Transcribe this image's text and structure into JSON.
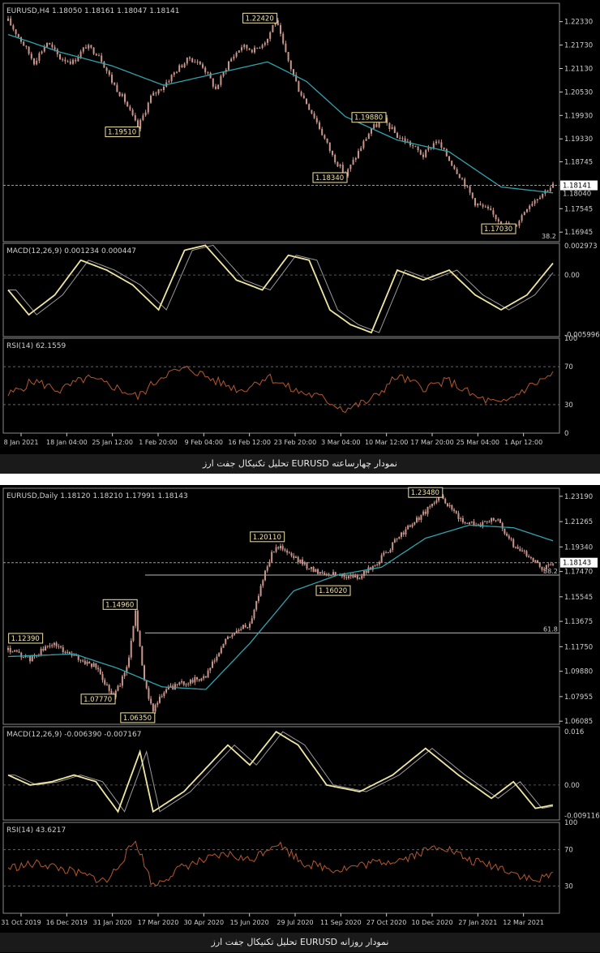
{
  "colors": {
    "candle": "#c9958a",
    "ma": "#2fa3ad",
    "macd": "#f0e6a0",
    "signal": "#9a9a9a",
    "rsi": "#b5572e",
    "label_bg": "#f3e3a3",
    "axis": "#cfcfcf",
    "level": "#b8b8b8"
  },
  "chart_data": [
    {
      "type": "candlestick",
      "title": "EURUSD,H4  1.18050 1.18161 1.18047 1.18141",
      "caption": "تحلیل تکنیکال جفت ارز EURUSD نمودار چهارساعته",
      "x_ticks": [
        "8 Jan 2021",
        "18 Jan 04:00",
        "25 Jan 12:00",
        "1 Feb 20:00",
        "9 Feb 04:00",
        "16 Feb 12:00",
        "23 Feb 20:00",
        "3 Mar 04:00",
        "10 Mar 12:00",
        "17 Mar 20:00",
        "25 Mar 04:00",
        "1 Apr 12:00"
      ],
      "price_ticks": [
        "1.22330",
        "1.21730",
        "1.21130",
        "1.20530",
        "1.19930",
        "1.19330",
        "1.18745",
        "1.17545",
        "1.16945"
      ],
      "ylim": [
        1.167,
        1.228
      ],
      "price_anchors": [
        [
          0,
          1.2235
        ],
        [
          5,
          1.2185
        ],
        [
          10,
          1.213
        ],
        [
          15,
          1.218
        ],
        [
          20,
          1.214
        ],
        [
          25,
          1.213
        ],
        [
          30,
          1.217
        ],
        [
          35,
          1.215
        ],
        [
          40,
          1.208
        ],
        [
          45,
          1.203
        ],
        [
          50,
          1.196
        ],
        [
          55,
          1.204
        ],
        [
          60,
          1.207
        ],
        [
          65,
          1.211
        ],
        [
          70,
          1.214
        ],
        [
          75,
          1.212
        ],
        [
          80,
          1.206
        ],
        [
          85,
          1.213
        ],
        [
          90,
          1.217
        ],
        [
          95,
          1.216
        ],
        [
          100,
          1.219
        ],
        [
          103,
          1.224
        ],
        [
          107,
          1.215
        ],
        [
          112,
          1.206
        ],
        [
          118,
          1.199
        ],
        [
          125,
          1.189
        ],
        [
          130,
          1.184
        ],
        [
          135,
          1.19
        ],
        [
          140,
          1.196
        ],
        [
          145,
          1.198
        ],
        [
          150,
          1.194
        ],
        [
          155,
          1.192
        ],
        [
          160,
          1.189
        ],
        [
          165,
          1.193
        ],
        [
          170,
          1.188
        ],
        [
          175,
          1.183
        ],
        [
          180,
          1.177
        ],
        [
          185,
          1.175
        ],
        [
          190,
          1.172
        ],
        [
          195,
          1.1705
        ],
        [
          200,
          1.176
        ],
        [
          205,
          1.179
        ],
        [
          210,
          1.1815
        ]
      ],
      "ma_anchors": [
        [
          0,
          1.22
        ],
        [
          20,
          1.2155
        ],
        [
          40,
          1.212
        ],
        [
          60,
          1.207
        ],
        [
          80,
          1.21
        ],
        [
          100,
          1.213
        ],
        [
          115,
          1.208
        ],
        [
          130,
          1.199
        ],
        [
          150,
          1.193
        ],
        [
          170,
          1.19
        ],
        [
          190,
          1.181
        ],
        [
          210,
          1.1795
        ]
      ],
      "annotations": [
        {
          "text": "1.22420",
          "x": 103,
          "y": 1.2242
        },
        {
          "text": "1.19510",
          "x": 50,
          "y": 1.1951
        },
        {
          "text": "1.18340",
          "x": 130,
          "y": 1.1834
        },
        {
          "text": "1.19880",
          "x": 145,
          "y": 1.1988
        },
        {
          "text": "1.17030",
          "x": 195,
          "y": 1.1703
        }
      ],
      "current_price": "1.18141",
      "line_price": "1.18040",
      "fib_label": "38.2",
      "macd": {
        "title": "MACD(12,26,9) 0.001234 0.000447",
        "ticks": [
          "0.002973",
          "0.00",
          "-0.005996"
        ],
        "ylim": [
          -0.0062,
          0.0032
        ],
        "anchors": [
          [
            0,
            -0.0015
          ],
          [
            8,
            -0.004
          ],
          [
            18,
            -0.002
          ],
          [
            28,
            0.0015
          ],
          [
            38,
            0.0005
          ],
          [
            48,
            -0.001
          ],
          [
            58,
            -0.0035
          ],
          [
            68,
            0.0025
          ],
          [
            76,
            0.003
          ],
          [
            88,
            -0.0005
          ],
          [
            98,
            -0.0015
          ],
          [
            108,
            0.002
          ],
          [
            116,
            0.0015
          ],
          [
            124,
            -0.0035
          ],
          [
            132,
            -0.005
          ],
          [
            140,
            -0.0058
          ],
          [
            150,
            0.0005
          ],
          [
            160,
            -0.0005
          ],
          [
            170,
            0.0005
          ],
          [
            180,
            -0.002
          ],
          [
            190,
            -0.0035
          ],
          [
            200,
            -0.002
          ],
          [
            210,
            0.0012
          ]
        ]
      },
      "rsi": {
        "title": "RSI(14) 62.1559",
        "ticks": [
          "100",
          "70",
          "30",
          "0"
        ],
        "levels": [
          70,
          30
        ],
        "anchors": [
          [
            0,
            40
          ],
          [
            10,
            55
          ],
          [
            20,
            45
          ],
          [
            30,
            58
          ],
          [
            40,
            50
          ],
          [
            50,
            38
          ],
          [
            60,
            62
          ],
          [
            70,
            68
          ],
          [
            80,
            55
          ],
          [
            90,
            45
          ],
          [
            100,
            60
          ],
          [
            110,
            45
          ],
          [
            120,
            38
          ],
          [
            130,
            25
          ],
          [
            140,
            35
          ],
          [
            150,
            60
          ],
          [
            160,
            48
          ],
          [
            170,
            55
          ],
          [
            180,
            38
          ],
          [
            190,
            30
          ],
          [
            200,
            48
          ],
          [
            210,
            62
          ]
        ]
      }
    },
    {
      "type": "candlestick",
      "title": "EURUSD,Daily  1.18120 1.18210 1.17991 1.18143",
      "caption": "تحلیل تکنیکال جفت ارز EURUSD نمودار روزانه",
      "x_ticks": [
        "31 Oct 2019",
        "16 Dec 2019",
        "31 Jan 2020",
        "17 Mar 2020",
        "30 Apr 2020",
        "15 Jun 2020",
        "29 Jul 2020",
        "11 Sep 2020",
        "27 Oct 2020",
        "10 Dec 2020",
        "27 Jan 2021",
        "12 Mar 2021"
      ],
      "price_ticks": [
        "1.23190",
        "1.21265",
        "1.19340",
        "1.17470",
        "1.15545",
        "1.13675",
        "1.11750",
        "1.09880",
        "1.07955",
        "1.06085"
      ],
      "ylim": [
        1.0585,
        1.238
      ],
      "price_anchors": [
        [
          0,
          1.115
        ],
        [
          10,
          1.108
        ],
        [
          20,
          1.12
        ],
        [
          30,
          1.11
        ],
        [
          40,
          1.102
        ],
        [
          48,
          1.08
        ],
        [
          54,
          1.1
        ],
        [
          58,
          1.145
        ],
        [
          62,
          1.09
        ],
        [
          66,
          1.07
        ],
        [
          72,
          1.085
        ],
        [
          80,
          1.09
        ],
        [
          90,
          1.095
        ],
        [
          100,
          1.125
        ],
        [
          110,
          1.135
        ],
        [
          118,
          1.18
        ],
        [
          122,
          1.195
        ],
        [
          130,
          1.185
        ],
        [
          140,
          1.175
        ],
        [
          150,
          1.172
        ],
        [
          160,
          1.17
        ],
        [
          170,
          1.185
        ],
        [
          180,
          1.205
        ],
        [
          190,
          1.22
        ],
        [
          197,
          1.233
        ],
        [
          205,
          1.215
        ],
        [
          215,
          1.21
        ],
        [
          222,
          1.215
        ],
        [
          230,
          1.195
        ],
        [
          238,
          1.185
        ],
        [
          244,
          1.176
        ],
        [
          248,
          1.1815
        ]
      ],
      "ma_anchors": [
        [
          0,
          1.11
        ],
        [
          30,
          1.112
        ],
        [
          50,
          1.101
        ],
        [
          70,
          1.087
        ],
        [
          90,
          1.085
        ],
        [
          110,
          1.12
        ],
        [
          130,
          1.16
        ],
        [
          150,
          1.172
        ],
        [
          170,
          1.178
        ],
        [
          190,
          1.2
        ],
        [
          210,
          1.21
        ],
        [
          230,
          1.208
        ],
        [
          248,
          1.198
        ]
      ],
      "annotations": [
        {
          "text": "1.23480",
          "x": 197,
          "y": 1.2348
        },
        {
          "text": "1.20110",
          "x": 125,
          "y": 1.2011
        },
        {
          "text": "1.14960",
          "x": 58,
          "y": 1.1496
        },
        {
          "text": "1.12390",
          "x": 15,
          "y": 1.1239
        },
        {
          "text": "1.07770",
          "x": 48,
          "y": 1.0777
        },
        {
          "text": "1.06350",
          "x": 66,
          "y": 1.0635
        },
        {
          "text": "1.16020",
          "x": 155,
          "y": 1.1602
        }
      ],
      "current_price": "1.18143",
      "fib_labels": [
        "38.2",
        "61.8"
      ],
      "fib_levels": [
        1.172,
        1.128
      ],
      "macd": {
        "title": "MACD(12,26,9) -0.006390 -0.007167",
        "ticks": [
          "0.016",
          "0.00",
          "-0.009116"
        ],
        "ylim": [
          -0.0105,
          0.0175
        ],
        "anchors": [
          [
            0,
            0.003
          ],
          [
            10,
            0.0
          ],
          [
            20,
            0.001
          ],
          [
            30,
            0.003
          ],
          [
            40,
            0.001
          ],
          [
            50,
            -0.008
          ],
          [
            60,
            0.01
          ],
          [
            66,
            -0.008
          ],
          [
            80,
            -0.002
          ],
          [
            100,
            0.012
          ],
          [
            110,
            0.006
          ],
          [
            122,
            0.016
          ],
          [
            132,
            0.012
          ],
          [
            145,
            0.0
          ],
          [
            160,
            -0.002
          ],
          [
            175,
            0.003
          ],
          [
            190,
            0.011
          ],
          [
            205,
            0.003
          ],
          [
            220,
            -0.004
          ],
          [
            230,
            0.001
          ],
          [
            240,
            -0.007
          ],
          [
            248,
            -0.006
          ]
        ]
      },
      "rsi": {
        "title": "RSI(14) 43.6217",
        "ticks": [
          "100",
          "70",
          "30"
        ],
        "levels": [
          70,
          30
        ],
        "anchors": [
          [
            0,
            50
          ],
          [
            15,
            55
          ],
          [
            30,
            45
          ],
          [
            45,
            35
          ],
          [
            58,
            80
          ],
          [
            66,
            30
          ],
          [
            80,
            52
          ],
          [
            100,
            65
          ],
          [
            110,
            58
          ],
          [
            122,
            78
          ],
          [
            135,
            55
          ],
          [
            150,
            48
          ],
          [
            165,
            55
          ],
          [
            180,
            60
          ],
          [
            197,
            75
          ],
          [
            210,
            58
          ],
          [
            225,
            50
          ],
          [
            240,
            35
          ],
          [
            248,
            43
          ]
        ]
      }
    }
  ]
}
